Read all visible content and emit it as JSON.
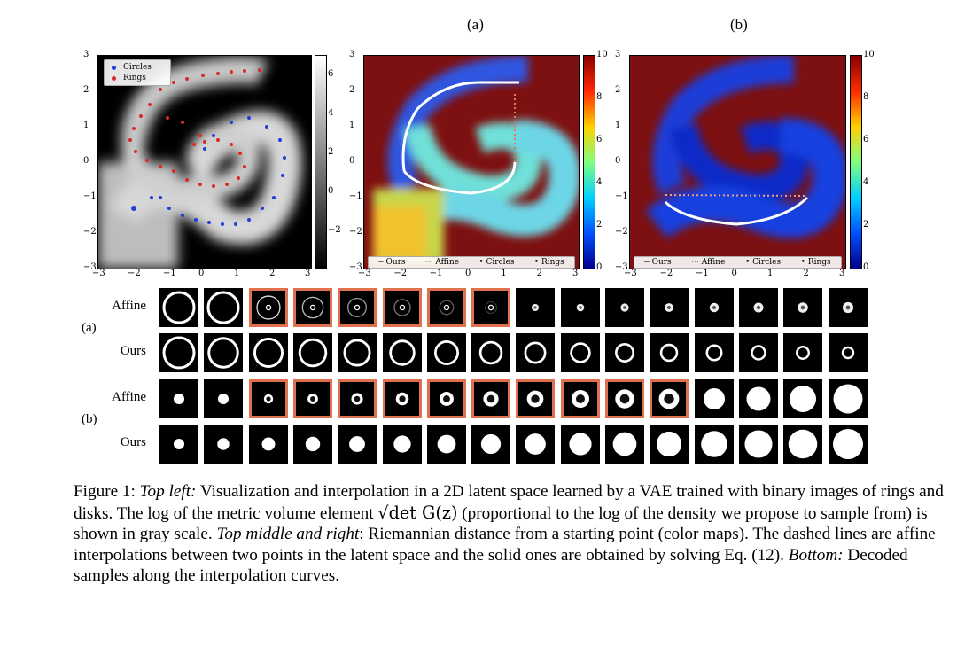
{
  "panel_labels": {
    "a": "(a)",
    "b": "(b)"
  },
  "plots": {
    "left": {
      "xticks": [
        "−3",
        "−2",
        "−1",
        "0",
        "1",
        "2",
        "3"
      ],
      "yticks": [
        "3",
        "2",
        "1",
        "0",
        "−1",
        "−2",
        "−3"
      ],
      "cbar_ticks": [
        "6",
        "4",
        "2",
        "0",
        "−2"
      ],
      "legend": [
        {
          "label": "Circles",
          "color": "#1f3fd6"
        },
        {
          "label": "Rings",
          "color": "#d92a2a"
        }
      ]
    },
    "middle": {
      "xticks": [
        "−3",
        "−2",
        "−1",
        "0",
        "1",
        "2",
        "3"
      ],
      "yticks": [
        "3",
        "2",
        "1",
        "0",
        "−1",
        "−2",
        "−3"
      ],
      "cbar_ticks": [
        "10",
        "8",
        "6",
        "4",
        "2",
        "0"
      ],
      "legend": [
        "Ours",
        "Affine",
        "Circles",
        "Rings"
      ]
    },
    "right": {
      "xticks": [
        "−3",
        "−2",
        "−1",
        "0",
        "1",
        "2",
        "3"
      ],
      "yticks": [
        "3",
        "2",
        "1",
        "0",
        "−1",
        "−2",
        "−3"
      ],
      "cbar_ticks": [
        "10",
        "8",
        "6",
        "4",
        "2",
        "0"
      ],
      "legend": [
        "Ours",
        "Affine",
        "Circles",
        "Rings"
      ]
    }
  },
  "grid": {
    "groups": [
      {
        "label": "(a)",
        "rows": [
          {
            "label": "Affine",
            "kind": "ring-affine",
            "highlight": [
              2,
              3,
              4,
              5,
              6,
              7
            ]
          },
          {
            "label": "Ours",
            "kind": "ring-ours",
            "highlight": []
          }
        ]
      },
      {
        "label": "(b)",
        "rows": [
          {
            "label": "Affine",
            "kind": "disk-affine",
            "highlight": [
              2,
              3,
              4,
              5,
              6,
              7,
              8,
              9,
              10,
              11
            ]
          },
          {
            "label": "Ours",
            "kind": "disk-ours",
            "highlight": []
          }
        ]
      }
    ]
  },
  "caption": {
    "fig": "Figure 1: ",
    "top_left": "Top left:",
    "p1": " Visualization and interpolation in a 2D latent space learned by a VAE trained with binary images of rings and disks. The log of the metric volume element ",
    "formula": "√det G(z)",
    "p2": " (proportional to the log of the density we propose to sample from) is shown in gray scale. ",
    "top_mid": "Top middle and right",
    "p3": ": Riemannian distance from a starting point (color maps). The dashed lines are affine interpolations between two points in the latent space and the solid ones are obtained by solving Eq. (12). ",
    "bottom": "Bottom:",
    "p4": " Decoded samples along the interpolation curves."
  }
}
